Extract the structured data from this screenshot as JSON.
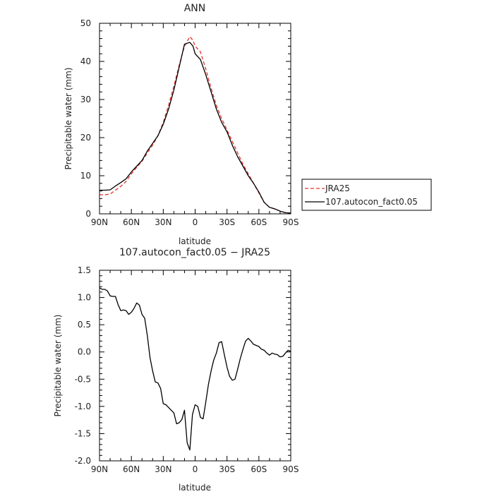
{
  "chart_data": [
    {
      "type": "line",
      "title": "ANN",
      "xlabel": "latitude",
      "ylabel": "Precipitable water (mm)",
      "x_tick_labels": [
        "90N",
        "60N",
        "30N",
        "0",
        "30S",
        "60S",
        "90S"
      ],
      "x_tick_values": [
        90,
        60,
        30,
        0,
        -30,
        -60,
        -90
      ],
      "xlim": [
        90,
        -90
      ],
      "ylim": [
        0,
        50
      ],
      "y_ticks": [
        0,
        10,
        20,
        30,
        40,
        50
      ],
      "legend_position": "right",
      "series": [
        {
          "name": "JRA25",
          "color": "#e8302a",
          "dash": "dashed",
          "x": [
            90,
            85,
            80,
            75,
            70,
            65,
            60,
            55,
            50,
            45,
            40,
            35,
            30,
            25,
            20,
            15,
            10,
            5,
            2,
            0,
            -5,
            -10,
            -15,
            -20,
            -25,
            -30,
            -35,
            -40,
            -45,
            -50,
            -55,
            -60,
            -65,
            -70,
            -75,
            -80,
            -85,
            -90
          ],
          "y": [
            5.0,
            5.0,
            5.2,
            6.2,
            7.2,
            8.5,
            10.5,
            12.2,
            13.8,
            16.0,
            18.0,
            20.5,
            24.0,
            28.5,
            33.5,
            39.0,
            44.0,
            46.5,
            45.5,
            44.0,
            42.5,
            38.0,
            33.0,
            28.5,
            25.0,
            22.0,
            19.0,
            16.0,
            13.0,
            10.5,
            8.0,
            5.5,
            3.0,
            1.7,
            1.3,
            0.7,
            0.3,
            0.2
          ]
        },
        {
          "name": "107.autocon_fact0.05",
          "color": "#000000",
          "dash": "solid",
          "x": [
            90,
            85,
            80,
            75,
            70,
            65,
            60,
            55,
            50,
            45,
            40,
            35,
            30,
            25,
            20,
            15,
            10,
            5,
            2,
            0,
            -5,
            -10,
            -15,
            -20,
            -25,
            -30,
            -35,
            -40,
            -45,
            -50,
            -55,
            -60,
            -65,
            -70,
            -75,
            -80,
            -85,
            -90
          ],
          "y": [
            6.2,
            6.2,
            6.3,
            7.3,
            8.2,
            9.2,
            11.0,
            12.5,
            14.0,
            16.5,
            18.5,
            20.5,
            23.5,
            27.5,
            32.5,
            38.5,
            44.5,
            45.0,
            44.0,
            42.0,
            40.5,
            36.5,
            32.0,
            27.5,
            24.0,
            21.5,
            18.0,
            15.0,
            12.5,
            10.0,
            8.0,
            5.7,
            3.0,
            1.7,
            1.3,
            0.7,
            0.3,
            0.2
          ]
        }
      ]
    },
    {
      "type": "line",
      "title": "107.autocon_fact0.05 − JRA25",
      "xlabel": "latitude",
      "ylabel": "Precipitable water (mm)",
      "x_tick_labels": [
        "90N",
        "60N",
        "30N",
        "0",
        "30S",
        "60S",
        "90S"
      ],
      "x_tick_values": [
        90,
        60,
        30,
        0,
        -30,
        -60,
        -90
      ],
      "xlim": [
        90,
        -90
      ],
      "ylim": [
        -2.0,
        1.5
      ],
      "y_ticks": [
        1.5,
        1.0,
        0.5,
        0.0,
        -0.5,
        -1.0,
        -1.5,
        -2.0
      ],
      "y_tick_labels": [
        "1.5",
        "1.0",
        "0.5",
        "0.0",
        "-0.5",
        "-1.0",
        "-1.5",
        "-2.0"
      ],
      "series": [
        {
          "name": "",
          "color": "#000000",
          "x": [
            90,
            87.5,
            85,
            82.5,
            80,
            77.5,
            75,
            72.5,
            70,
            67.5,
            65,
            62.5,
            60,
            57.5,
            55,
            52.5,
            50,
            47.5,
            45,
            42.5,
            40,
            37.5,
            35,
            32.5,
            30,
            27.5,
            25,
            22.5,
            20,
            17.5,
            15,
            12.5,
            10,
            7.5,
            5,
            2.5,
            0,
            -2.5,
            -5,
            -7.5,
            -10,
            -12.5,
            -15,
            -17.5,
            -20,
            -22.5,
            -25,
            -27.5,
            -30,
            -32.5,
            -35,
            -37.5,
            -40,
            -42.5,
            -45,
            -47.5,
            -50,
            -52.5,
            -55,
            -57.5,
            -60,
            -62.5,
            -65,
            -67.5,
            -70,
            -72.5,
            -75,
            -77.5,
            -80,
            -82.5,
            -85,
            -87.5,
            -90
          ],
          "y": [
            1.18,
            1.15,
            1.15,
            1.12,
            1.03,
            1.02,
            1.02,
            0.87,
            0.76,
            0.77,
            0.76,
            0.69,
            0.73,
            0.8,
            0.9,
            0.86,
            0.69,
            0.62,
            0.3,
            -0.1,
            -0.35,
            -0.55,
            -0.57,
            -0.67,
            -0.95,
            -0.97,
            -1.02,
            -1.07,
            -1.12,
            -1.32,
            -1.3,
            -1.24,
            -1.07,
            -1.67,
            -1.8,
            -1.15,
            -0.97,
            -1.0,
            -1.2,
            -1.23,
            -0.92,
            -0.6,
            -0.35,
            -0.15,
            -0.02,
            0.17,
            0.19,
            -0.05,
            -0.28,
            -0.45,
            -0.52,
            -0.5,
            -0.32,
            -0.12,
            0.05,
            0.2,
            0.25,
            0.2,
            0.14,
            0.12,
            0.1,
            0.05,
            0.03,
            -0.02,
            -0.06,
            -0.02,
            -0.04,
            -0.05,
            -0.09,
            -0.08,
            -0.02,
            0.03,
            0.01
          ]
        }
      ]
    }
  ]
}
